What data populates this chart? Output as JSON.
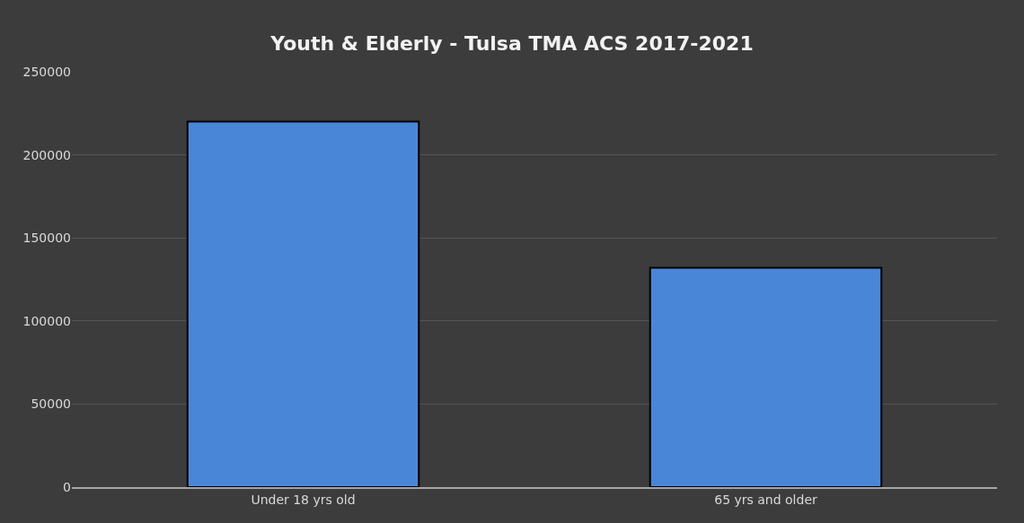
{
  "chart_data": {
    "type": "bar",
    "title": "Youth & Elderly - Tulsa TMA ACS 2017-2021",
    "categories": [
      "Under 18 yrs old",
      "65 yrs and older"
    ],
    "values": [
      220000,
      132000
    ],
    "color": "#4a86d8",
    "ylim": [
      0,
      250000
    ],
    "yticks": [
      0,
      50000,
      100000,
      150000,
      200000,
      250000
    ],
    "grid": "y"
  }
}
